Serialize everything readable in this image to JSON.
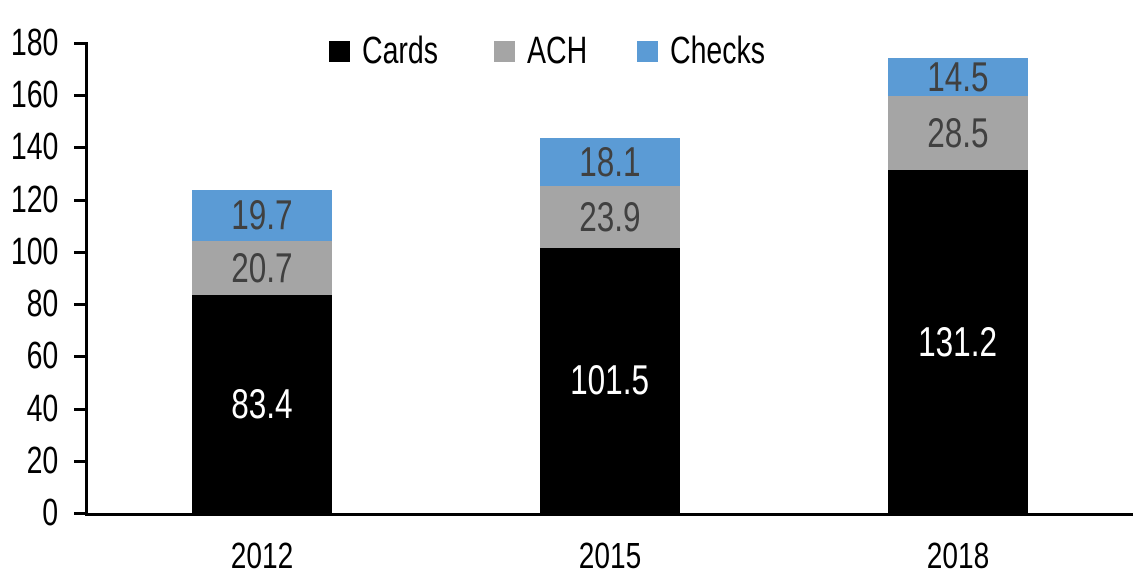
{
  "chart_data": {
    "type": "bar",
    "stacked": true,
    "title": "",
    "xlabel": "",
    "ylabel": "",
    "categories": [
      "2012",
      "2015",
      "2018"
    ],
    "series": [
      {
        "name": "Cards",
        "color": "#000000",
        "label_color": "#ffffff",
        "values": [
          83.4,
          101.5,
          131.2
        ]
      },
      {
        "name": "ACH",
        "color": "#a5a5a5",
        "label_color": "#404040",
        "values": [
          20.7,
          23.9,
          28.5
        ]
      },
      {
        "name": "Checks",
        "color": "#5b9bd5",
        "label_color": "#404040",
        "values": [
          19.7,
          18.1,
          14.5
        ]
      }
    ],
    "ylim": [
      0,
      180
    ],
    "yticks": [
      0,
      20,
      40,
      60,
      80,
      100,
      120,
      140,
      160,
      180
    ],
    "grid": false,
    "legend_position": "top-center",
    "axis_color": "#000000"
  }
}
